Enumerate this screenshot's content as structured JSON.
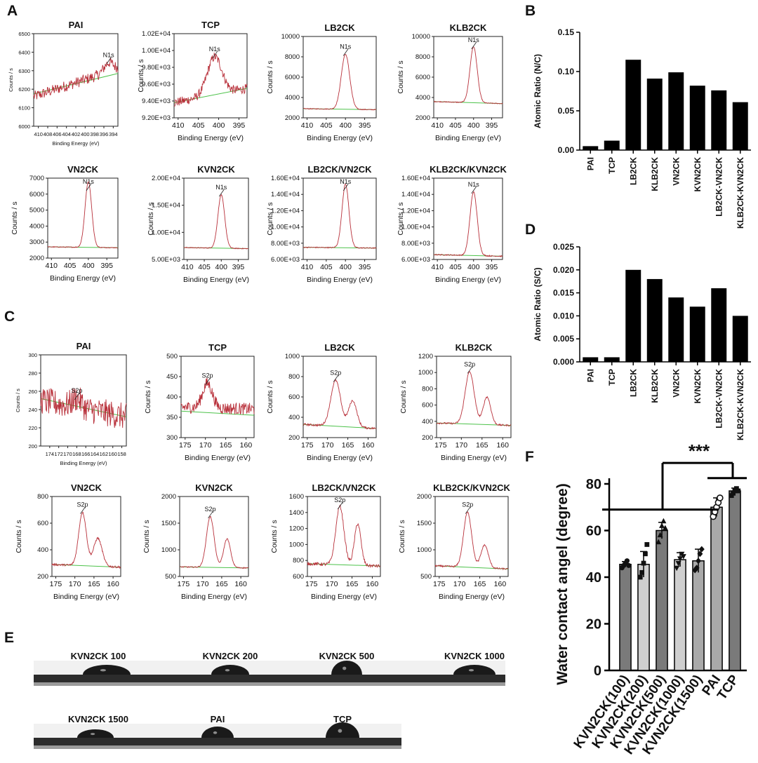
{
  "panel_labels": {
    "A": "A",
    "B": "B",
    "C": "C",
    "D": "D",
    "E": "E",
    "F": "F"
  },
  "colors": {
    "spectrum": "#b8303a",
    "baseline": "#4cc24a",
    "bar": "#000000",
    "axis": "#000000",
    "gray_bar_dark": "#7a7a7a",
    "gray_bar_light": "#c8c8c8"
  },
  "xps_x_axis_label": "Binding Energy (eV)",
  "xps_y_axis_label": "Counts / s",
  "chart_data": [
    {
      "panel": "A",
      "type": "line",
      "spectra": [
        {
          "title": "PAI",
          "peak_label": "N1s",
          "xlim": [
            411,
            393
          ],
          "ylim": [
            6000,
            6500
          ],
          "yticks": [
            "6000",
            "6100",
            "6200",
            "6300",
            "6400",
            "6500"
          ],
          "xticks": [
            "410",
            "408",
            "406",
            "404",
            "402",
            "400",
            "398",
            "396",
            "394"
          ],
          "xtick_values": [
            410,
            408,
            406,
            404,
            402,
            400,
            398,
            396,
            394
          ],
          "peak": {
            "center": 395,
            "height": 50,
            "width": 1.0
          },
          "noise": 60,
          "baseline": [
            6175,
            6285
          ],
          "bg": [
            6160,
            6310
          ],
          "xlabel_short": true
        },
        {
          "title": "TCP",
          "peak_label": "N1s",
          "xlim": [
            411,
            393
          ],
          "ylim": [
            9200,
            10200
          ],
          "yticks": [
            "9.20E+03",
            "9.40E+03",
            "9.60E+03",
            "9.80E+03",
            "1.00E+04",
            "1.02E+04"
          ],
          "xticks": [
            "410",
            "405",
            "400",
            "395"
          ],
          "xtick_values": [
            410,
            405,
            400,
            395
          ],
          "peak": {
            "center": 401,
            "height": 450,
            "width": 1.8
          },
          "noise": 110,
          "baseline": [
            9380,
            9550
          ],
          "bg": [
            9380,
            9550
          ]
        },
        {
          "title": "LB2CK",
          "peak_label": "N1s",
          "xlim": [
            411,
            392
          ],
          "ylim": [
            2000,
            10000
          ],
          "yticks": [
            "2000",
            "4000",
            "6000",
            "8000",
            "10000"
          ],
          "xticks": [
            "410",
            "405",
            "400",
            "395"
          ],
          "xtick_values": [
            410,
            405,
            400,
            395
          ],
          "peak": {
            "center": 400,
            "height": 5400,
            "width": 1.1
          },
          "noise": 80,
          "baseline": [
            2900,
            2800
          ],
          "bg": [
            2900,
            2800
          ]
        },
        {
          "title": "KLB2CK",
          "peak_label": "N1s",
          "xlim": [
            411,
            392
          ],
          "ylim": [
            2000,
            10000
          ],
          "yticks": [
            "2000",
            "4000",
            "6000",
            "8000",
            "10000"
          ],
          "xticks": [
            "410",
            "405",
            "400",
            "395"
          ],
          "xtick_values": [
            410,
            405,
            400,
            395
          ],
          "peak": {
            "center": 400,
            "height": 5500,
            "width": 1.0
          },
          "noise": 80,
          "baseline": [
            3600,
            3400
          ],
          "bg": [
            3600,
            3400
          ]
        },
        {
          "title": "VN2CK",
          "peak_label": "N1s",
          "xlim": [
            411,
            392
          ],
          "ylim": [
            2000,
            7000
          ],
          "yticks": [
            "2000",
            "3000",
            "4000",
            "5000",
            "6000",
            "7000"
          ],
          "xticks": [
            "410",
            "405",
            "400",
            "395"
          ],
          "xtick_values": [
            410,
            405,
            400,
            395
          ],
          "peak": {
            "center": 400,
            "height": 4100,
            "width": 0.9
          },
          "noise": 50,
          "baseline": [
            2700,
            2650
          ],
          "bg": [
            2700,
            2650
          ]
        },
        {
          "title": "KVN2CK",
          "peak_label": "N1s",
          "xlim": [
            411,
            392
          ],
          "ylim": [
            5000,
            20000
          ],
          "yticks": [
            "5.00E+03",
            "1.00E+04",
            "1.50E+04",
            "2.00E+04"
          ],
          "xticks": [
            "410",
            "405",
            "400",
            "395"
          ],
          "xtick_values": [
            410,
            405,
            400,
            395
          ],
          "peak": {
            "center": 400,
            "height": 9800,
            "width": 1.0
          },
          "noise": 150,
          "baseline": [
            7200,
            7000
          ],
          "bg": [
            7200,
            7000
          ]
        },
        {
          "title": "LB2CK/VN2CK",
          "peak_label": "N1s",
          "xlim": [
            411,
            392
          ],
          "ylim": [
            6000,
            16000
          ],
          "yticks": [
            "6.00E+03",
            "8.00E+03",
            "1.00E+04",
            "1.20E+04",
            "1.40E+04",
            "1.60E+04"
          ],
          "xticks": [
            "410",
            "405",
            "400",
            "395"
          ],
          "xtick_values": [
            410,
            405,
            400,
            395
          ],
          "peak": {
            "center": 400,
            "height": 7800,
            "width": 0.9
          },
          "noise": 130,
          "baseline": [
            7500,
            7400
          ],
          "bg": [
            7500,
            7400
          ]
        },
        {
          "title": "KLB2CK/KVN2CK",
          "peak_label": "N1s",
          "xlim": [
            411,
            392
          ],
          "ylim": [
            6000,
            16000
          ],
          "yticks": [
            "6.00E+03",
            "8.00E+03",
            "1.00E+04",
            "1.20E+04",
            "1.40E+04",
            "1.60E+04"
          ],
          "xticks": [
            "410",
            "405",
            "400",
            "395"
          ],
          "xtick_values": [
            410,
            405,
            400,
            395
          ],
          "peak": {
            "center": 400,
            "height": 7800,
            "width": 1.0
          },
          "noise": 130,
          "baseline": [
            6600,
            6400
          ],
          "bg": [
            6600,
            6400
          ]
        }
      ]
    },
    {
      "panel": "B",
      "type": "bar",
      "categories": [
        "PAI",
        "TCP",
        "LB2CK",
        "KLB2CK",
        "VN2CK",
        "KVN2CK",
        "LB2CK-VN2CK",
        "KLB2CK-KVN2CK"
      ],
      "values": [
        0.005,
        0.012,
        0.115,
        0.091,
        0.099,
        0.082,
        0.076,
        0.061
      ],
      "ylabel": "Atomic Ratio (N/C)",
      "ylim": [
        0,
        0.15
      ],
      "yticks": [
        "0.00",
        "0.05",
        "0.10",
        "0.15"
      ],
      "ytick_values": [
        0,
        0.05,
        0.1,
        0.15
      ]
    },
    {
      "panel": "C",
      "type": "line",
      "spectra": [
        {
          "title": "PAI",
          "peak_label": "S2p",
          "xlim": [
            176,
            157
          ],
          "ylim": [
            200,
            300
          ],
          "yticks": [
            "200",
            "220",
            "240",
            "260",
            "280",
            "300"
          ],
          "xticks": [
            "174",
            "172",
            "170",
            "168",
            "166",
            "164",
            "162",
            "160",
            "158"
          ],
          "xtick_values": [
            174,
            172,
            170,
            168,
            166,
            164,
            162,
            160,
            158
          ],
          "peak": {
            "center": 168,
            "height": 10,
            "width": 1.0
          },
          "noise": 30,
          "baseline": [
            252,
            232
          ],
          "bg": [
            250,
            232
          ],
          "xlabel_short": true
        },
        {
          "title": "TCP",
          "peak_label": "S2p",
          "xlim": [
            176,
            158
          ],
          "ylim": [
            300,
            500
          ],
          "yticks": [
            "300",
            "350",
            "400",
            "450",
            "500"
          ],
          "xticks": [
            "175",
            "170",
            "165",
            "160"
          ],
          "xtick_values": [
            175,
            170,
            165,
            160
          ],
          "peak": {
            "center": 169.5,
            "height": 60,
            "width": 1.2
          },
          "noise": 30,
          "baseline": [
            365,
            355
          ],
          "bg": [
            375,
            370
          ]
        },
        {
          "title": "LB2CK",
          "peak_label": "S2p",
          "xlim": [
            176,
            158
          ],
          "ylim": [
            200,
            1000
          ],
          "yticks": [
            "200",
            "400",
            "600",
            "800",
            "1000"
          ],
          "xticks": [
            "175",
            "170",
            "165",
            "160"
          ],
          "xtick_values": [
            175,
            170,
            165,
            160
          ],
          "peak": {
            "center": 168,
            "height": 450,
            "width": 1.2
          },
          "peak2": {
            "center": 163.8,
            "height": 260,
            "width": 1.0
          },
          "noise": 20,
          "baseline": [
            330,
            290
          ],
          "bg": [
            330,
            290
          ]
        },
        {
          "title": "KLB2CK",
          "peak_label": "S2p",
          "xlim": [
            176,
            158
          ],
          "ylim": [
            200,
            1200
          ],
          "yticks": [
            "200",
            "400",
            "600",
            "800",
            "1000",
            "1200"
          ],
          "xticks": [
            "175",
            "170",
            "165",
            "160"
          ],
          "xtick_values": [
            175,
            170,
            165,
            160
          ],
          "peak": {
            "center": 168,
            "height": 640,
            "width": 1.1
          },
          "peak2": {
            "center": 163.8,
            "height": 340,
            "width": 0.9
          },
          "noise": 20,
          "baseline": [
            380,
            350
          ],
          "bg": [
            380,
            350
          ]
        },
        {
          "title": "VN2CK",
          "peak_label": "S2p",
          "xlim": [
            176,
            158
          ],
          "ylim": [
            200,
            800
          ],
          "yticks": [
            "200",
            "400",
            "600",
            "800"
          ],
          "xticks": [
            "175",
            "170",
            "165",
            "160"
          ],
          "xtick_values": [
            175,
            170,
            165,
            160
          ],
          "peak": {
            "center": 168,
            "height": 400,
            "width": 1.0
          },
          "peak2": {
            "center": 164,
            "height": 210,
            "width": 1.1
          },
          "noise": 15,
          "baseline": [
            290,
            270
          ],
          "bg": [
            290,
            270
          ]
        },
        {
          "title": "KVN2CK",
          "peak_label": "S2p",
          "xlim": [
            176,
            158
          ],
          "ylim": [
            500,
            2000
          ],
          "yticks": [
            "500",
            "1000",
            "1500",
            "2000"
          ],
          "xticks": [
            "175",
            "170",
            "165",
            "160"
          ],
          "xtick_values": [
            175,
            170,
            165,
            160
          ],
          "peak": {
            "center": 168,
            "height": 950,
            "width": 1.0
          },
          "peak2": {
            "center": 163.6,
            "height": 540,
            "width": 0.9
          },
          "noise": 20,
          "baseline": [
            680,
            660
          ],
          "bg": [
            680,
            660
          ]
        },
        {
          "title": "LB2CK/VN2CK",
          "peak_label": "S2p",
          "xlim": [
            176,
            158
          ],
          "ylim": [
            600,
            1600
          ],
          "yticks": [
            "600",
            "800",
            "1000",
            "1200",
            "1400",
            "1600"
          ],
          "xticks": [
            "175",
            "170",
            "165",
            "160"
          ],
          "xtick_values": [
            175,
            170,
            165,
            160
          ],
          "peak": {
            "center": 168,
            "height": 730,
            "width": 1.0
          },
          "peak2": {
            "center": 163.6,
            "height": 520,
            "width": 0.8
          },
          "noise": 40,
          "baseline": [
            760,
            730
          ],
          "bg": [
            760,
            730
          ]
        },
        {
          "title": "KLB2CK/KVN2CK",
          "peak_label": "S2p",
          "xlim": [
            176,
            158
          ],
          "ylim": [
            500,
            2000
          ],
          "yticks": [
            "500",
            "1000",
            "1500",
            "2000"
          ],
          "xticks": [
            "175",
            "170",
            "165",
            "160"
          ],
          "xtick_values": [
            175,
            170,
            165,
            160
          ],
          "peak": {
            "center": 168,
            "height": 1030,
            "width": 1.0
          },
          "peak2": {
            "center": 163.8,
            "height": 430,
            "width": 0.9
          },
          "noise": 30,
          "baseline": [
            700,
            640
          ],
          "bg": [
            700,
            640
          ]
        }
      ]
    },
    {
      "panel": "D",
      "type": "bar",
      "categories": [
        "PAI",
        "TCP",
        "LB2CK",
        "KLB2CK",
        "VN2CK",
        "KVN2CK",
        "LB2CK-VN2CK",
        "KLB2CK-KVN2CK"
      ],
      "values": [
        0.001,
        0.001,
        0.02,
        0.018,
        0.014,
        0.012,
        0.016,
        0.01
      ],
      "ylabel": "Atomic Ratio (S/C)",
      "ylim": [
        0,
        0.025
      ],
      "yticks": [
        "0.000",
        "0.005",
        "0.010",
        "0.015",
        "0.020",
        "0.025"
      ],
      "ytick_values": [
        0,
        0.005,
        0.01,
        0.015,
        0.02,
        0.025
      ]
    },
    {
      "panel": "F",
      "type": "bar",
      "categories": [
        "KVN2CK(100)",
        "KVN2CK(200)",
        "KVN2CK(500)",
        "KVN2CK(1000)",
        "KVN2CK(1500)",
        "PAI",
        "TCP"
      ],
      "values": [
        45.5,
        45.5,
        60,
        47.5,
        47,
        70,
        77
      ],
      "errors": [
        1.2,
        5.5,
        3.5,
        3,
        5,
        4,
        1.2
      ],
      "points": [
        [
          44,
          45,
          46,
          47,
          45
        ],
        [
          40,
          42,
          46,
          50,
          54
        ],
        [
          55,
          58,
          62,
          64,
          61
        ],
        [
          44,
          46,
          48,
          50,
          49
        ],
        [
          43,
          44,
          47,
          50,
          52
        ],
        [
          66,
          68,
          70,
          72,
          74
        ],
        [
          75,
          76,
          77,
          78,
          77
        ]
      ],
      "markers": [
        "circle",
        "square",
        "triangle",
        "triangle-down",
        "diamond",
        "circle-open",
        "square"
      ],
      "bar_shades": [
        "#7a7a7a",
        "#cfcfcf",
        "#7a7a7a",
        "#cfcfcf",
        "#a9a9a9",
        "#a9a9a9",
        "#7a7a7a"
      ],
      "ylabel": "Water contact angel (degree)",
      "ylim": [
        0,
        80
      ],
      "yticks": [
        "0",
        "20",
        "40",
        "60",
        "80"
      ],
      "ytick_values": [
        0,
        20,
        40,
        60,
        80
      ],
      "significance": "***"
    }
  ],
  "panel_e": {
    "images": [
      {
        "label": "KVN2CK 100",
        "drop": "medium-wide"
      },
      {
        "label": "KVN2CK 200",
        "drop": "medium"
      },
      {
        "label": "KVN2CK 500",
        "drop": "tall"
      },
      {
        "label": "KVN2CK 1000",
        "drop": "low"
      },
      {
        "label": "KVN2CK 1500",
        "drop": "wide-low"
      },
      {
        "label": "PAI",
        "drop": "tall-narrow"
      },
      {
        "label": "TCP",
        "drop": "tallest"
      }
    ]
  }
}
